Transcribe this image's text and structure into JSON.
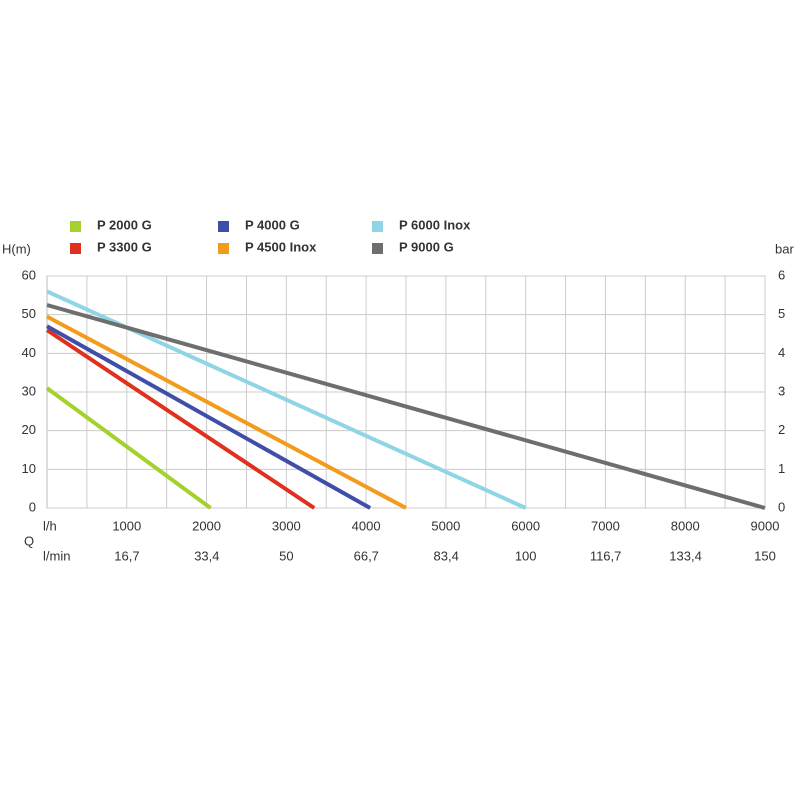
{
  "chart_data": {
    "type": "line",
    "y_label": "H(m)",
    "y2_label": "bar",
    "x_group_label": "Q",
    "x_label": "l/h",
    "x2_label": "l/min",
    "xlim": [
      0,
      9000
    ],
    "xticks": [
      1000,
      2000,
      3000,
      4000,
      5000,
      6000,
      7000,
      8000,
      9000
    ],
    "x_minor_grid": [
      500,
      1500,
      2500,
      3500,
      4500,
      5500,
      6500,
      7500,
      8500
    ],
    "x2lim": [
      0,
      150
    ],
    "x2ticks": [
      {
        "value": 16.7,
        "label": "16,7"
      },
      {
        "value": 33.4,
        "label": "33,4"
      },
      50,
      {
        "value": 66.7,
        "label": "66,7"
      },
      {
        "value": 83.4,
        "label": "83,4"
      },
      100,
      {
        "value": 116.7,
        "label": "116,7"
      },
      {
        "value": 133.4,
        "label": "133,4"
      },
      150
    ],
    "ylim": [
      0,
      60
    ],
    "yticks": [
      0,
      10,
      20,
      30,
      40,
      50,
      60
    ],
    "y2lim": [
      0,
      6
    ],
    "y2ticks": [
      0,
      1,
      2,
      3,
      4,
      5,
      6
    ],
    "grid": true,
    "series": [
      {
        "name": "P 2000 G",
        "color": "#a4d12c",
        "x": [
          0,
          2050
        ],
        "values": [
          31,
          0
        ]
      },
      {
        "name": "P 3300 G",
        "color": "#e0311f",
        "x": [
          0,
          3350
        ],
        "values": [
          46,
          0
        ]
      },
      {
        "name": "P 4000 G",
        "color": "#3f4ea6",
        "x": [
          0,
          4050
        ],
        "values": [
          47,
          0
        ]
      },
      {
        "name": "P 4500 Inox",
        "color": "#f39b1c",
        "x": [
          0,
          4500
        ],
        "values": [
          49.5,
          0
        ]
      },
      {
        "name": "P 6000 Inox",
        "color": "#8ed5e6",
        "x": [
          0,
          6000
        ],
        "values": [
          56,
          0
        ]
      },
      {
        "name": "P 9000 G",
        "color": "#6e6e6e",
        "x": [
          0,
          9000
        ],
        "values": [
          52.5,
          0
        ]
      }
    ]
  }
}
